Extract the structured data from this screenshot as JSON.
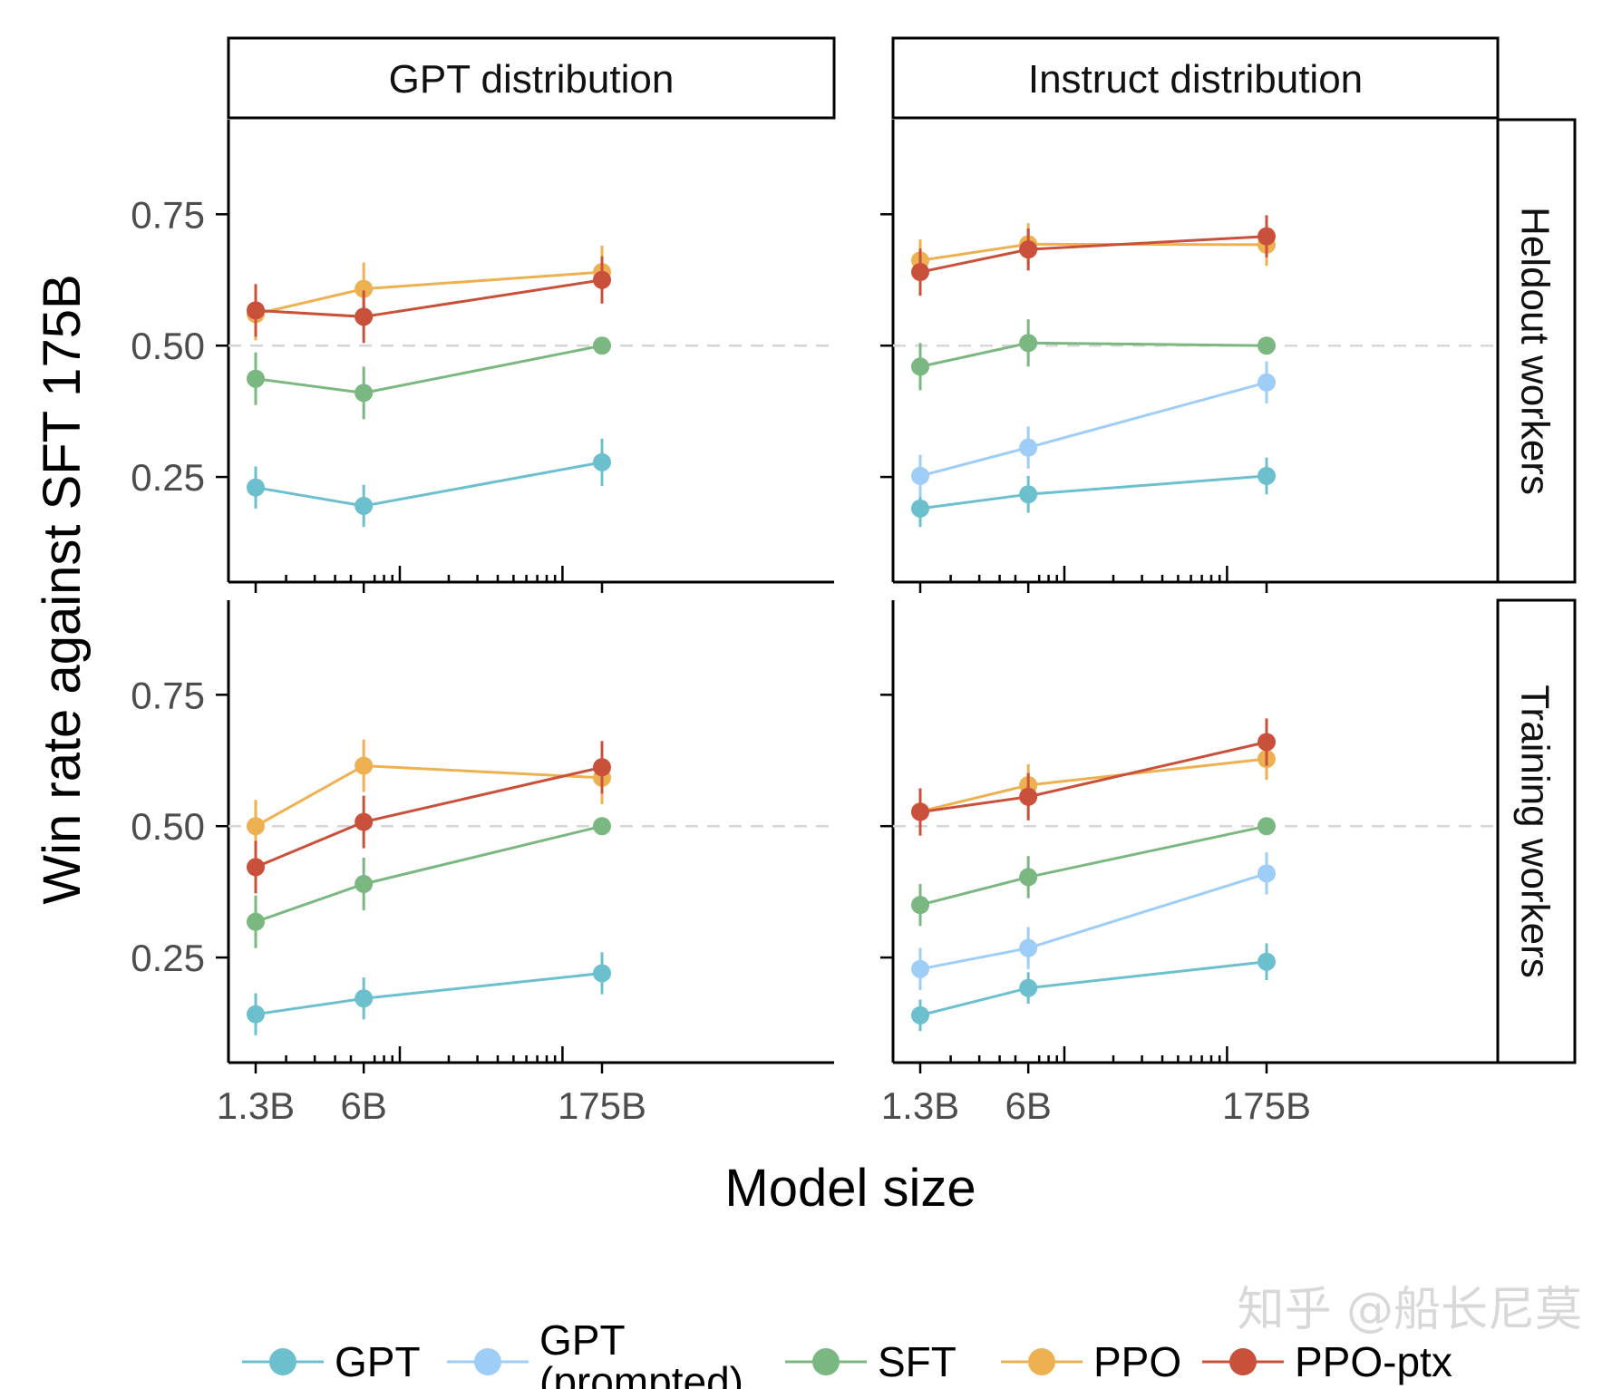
{
  "chart_data": {
    "type": "line",
    "x_label": "Model size",
    "y_label": "Win rate against SFT 175B",
    "x_scale": "log",
    "x_ticks": [
      "1.3B",
      "6B",
      "175B"
    ],
    "x_values": [
      1.3,
      6,
      175
    ],
    "y_ticks": [
      "0.25",
      "0.50",
      "0.75"
    ],
    "ylim": [
      0.05,
      0.93
    ],
    "reference_line": 0.5,
    "column_facets": [
      "GPT distribution",
      "Instruct distribution"
    ],
    "row_facets": [
      "Heldout workers",
      "Training workers"
    ],
    "colors": {
      "GPT": "#6cc0ce",
      "GPT (prompted)": "#9ecdf7",
      "SFT": "#7bb780",
      "PPO": "#eeb151",
      "PPO-ptx": "#c9503a"
    },
    "panels": [
      {
        "column": "GPT distribution",
        "row": "Heldout workers",
        "series": [
          {
            "name": "GPT",
            "values": [
              0.23,
              0.195,
              0.278
            ],
            "errors": [
              0.04,
              0.04,
              0.045
            ]
          },
          {
            "name": "SFT",
            "values": [
              0.437,
              0.41,
              0.5
            ],
            "errors": [
              0.05,
              0.05,
              0.0
            ]
          },
          {
            "name": "PPO",
            "values": [
              0.56,
              0.608,
              0.64
            ],
            "errors": [
              0.05,
              0.05,
              0.05
            ]
          },
          {
            "name": "PPO-ptx",
            "values": [
              0.567,
              0.555,
              0.625
            ],
            "errors": [
              0.05,
              0.05,
              0.045
            ]
          }
        ]
      },
      {
        "column": "Instruct distribution",
        "row": "Heldout workers",
        "series": [
          {
            "name": "GPT",
            "values": [
              0.19,
              0.217,
              0.252
            ],
            "errors": [
              0.035,
              0.035,
              0.035
            ]
          },
          {
            "name": "GPT (prompted)",
            "values": [
              0.252,
              0.306,
              0.43
            ],
            "errors": [
              0.04,
              0.04,
              0.04
            ]
          },
          {
            "name": "SFT",
            "values": [
              0.46,
              0.505,
              0.5
            ],
            "errors": [
              0.045,
              0.045,
              0.0
            ]
          },
          {
            "name": "PPO",
            "values": [
              0.662,
              0.693,
              0.692
            ],
            "errors": [
              0.04,
              0.04,
              0.04
            ]
          },
          {
            "name": "PPO-ptx",
            "values": [
              0.64,
              0.683,
              0.708
            ],
            "errors": [
              0.045,
              0.04,
              0.04
            ]
          }
        ]
      },
      {
        "column": "GPT distribution",
        "row": "Training workers",
        "series": [
          {
            "name": "GPT",
            "values": [
              0.142,
              0.172,
              0.22
            ],
            "errors": [
              0.04,
              0.04,
              0.04
            ]
          },
          {
            "name": "SFT",
            "values": [
              0.318,
              0.39,
              0.5
            ],
            "errors": [
              0.05,
              0.05,
              0.0
            ]
          },
          {
            "name": "PPO",
            "values": [
              0.5,
              0.615,
              0.592
            ],
            "errors": [
              0.05,
              0.05,
              0.05
            ]
          },
          {
            "name": "PPO-ptx",
            "values": [
              0.422,
              0.508,
              0.612
            ],
            "errors": [
              0.05,
              0.05,
              0.05
            ]
          }
        ]
      },
      {
        "column": "Instruct distribution",
        "row": "Training workers",
        "series": [
          {
            "name": "GPT",
            "values": [
              0.14,
              0.192,
              0.242
            ],
            "errors": [
              0.03,
              0.03,
              0.035
            ]
          },
          {
            "name": "GPT (prompted)",
            "values": [
              0.228,
              0.268,
              0.41
            ],
            "errors": [
              0.04,
              0.04,
              0.04
            ]
          },
          {
            "name": "SFT",
            "values": [
              0.35,
              0.403,
              0.5
            ],
            "errors": [
              0.04,
              0.04,
              0.0
            ]
          },
          {
            "name": "PPO",
            "values": [
              0.528,
              0.578,
              0.628
            ],
            "errors": [
              0.04,
              0.04,
              0.04
            ]
          },
          {
            "name": "PPO-ptx",
            "values": [
              0.527,
              0.556,
              0.66
            ],
            "errors": [
              0.045,
              0.045,
              0.045
            ]
          }
        ]
      }
    ],
    "legend": [
      {
        "name": "GPT",
        "label_lines": [
          "GPT"
        ]
      },
      {
        "name": "GPT (prompted)",
        "label_lines": [
          "GPT",
          "(prompted)"
        ]
      },
      {
        "name": "SFT",
        "label_lines": [
          "SFT"
        ]
      },
      {
        "name": "PPO",
        "label_lines": [
          "PPO"
        ]
      },
      {
        "name": "PPO-ptx",
        "label_lines": [
          "PPO-ptx"
        ]
      }
    ]
  },
  "watermark": "知乎 @船长尼莫"
}
